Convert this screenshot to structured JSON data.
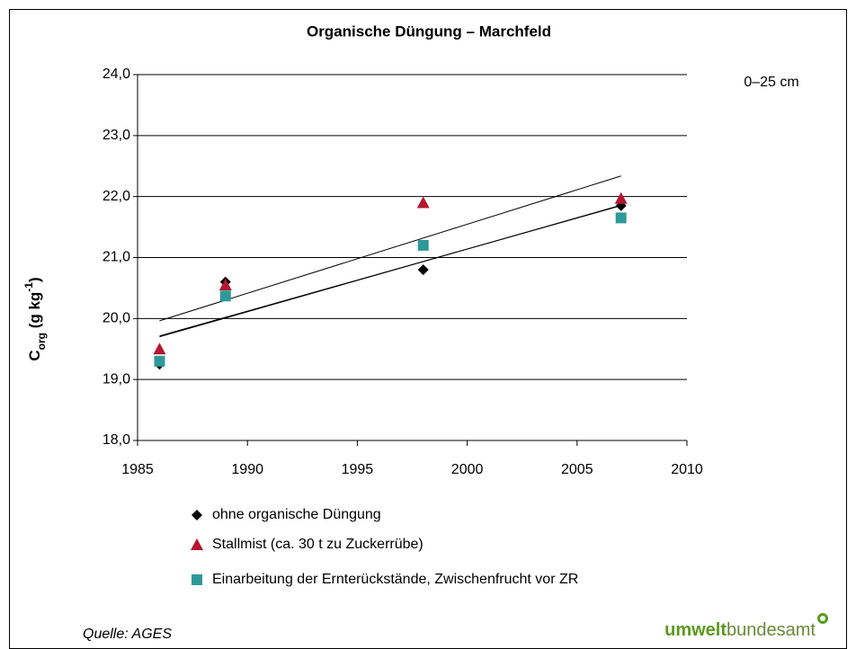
{
  "chart_data": {
    "type": "scatter",
    "title": "Organische Düngung – Marchfeld",
    "annotation": "0–25 cm",
    "ylabel": {
      "main": "C",
      "sub": "org",
      "middle": " (g kg",
      "sup": "-1",
      "end": ")"
    },
    "source": "Quelle: AGES",
    "logo": {
      "bold": "umwelt",
      "regular": "bundesamt"
    },
    "x": [
      1986,
      1989,
      1998,
      2007
    ],
    "series": [
      {
        "name": "ohne organische Düngung",
        "color": "#000000",
        "marker": "diamond",
        "values": [
          19.25,
          20.6,
          20.8,
          21.85
        ]
      },
      {
        "name": "Stallmist (ca. 30 t zu Zuckerrübe)",
        "color": "#b5172f",
        "marker": "triangle",
        "values": [
          19.5,
          20.55,
          21.9,
          21.97
        ]
      },
      {
        "name": "Einarbeitung der Ernterückstände, Zwischenfrucht vor ZR",
        "color": "#2e9999",
        "marker": "square",
        "values": [
          19.3,
          20.37,
          21.2,
          21.65
        ]
      }
    ],
    "trendline": true,
    "xlim": [
      1985,
      2010
    ],
    "xticks": [
      1985,
      1990,
      1995,
      2000,
      2005,
      2010
    ],
    "ylim": [
      18,
      24
    ],
    "yticks": [
      {
        "value": 18,
        "label": "18,0"
      },
      {
        "value": 19,
        "label": "19,0"
      },
      {
        "value": 20,
        "label": "20,0"
      },
      {
        "value": 21,
        "label": "21,0"
      },
      {
        "value": 22,
        "label": "22,0"
      },
      {
        "value": 23,
        "label": "23,0"
      },
      {
        "value": 24,
        "label": "24,0"
      }
    ],
    "grid": true,
    "legend": "bottom"
  }
}
